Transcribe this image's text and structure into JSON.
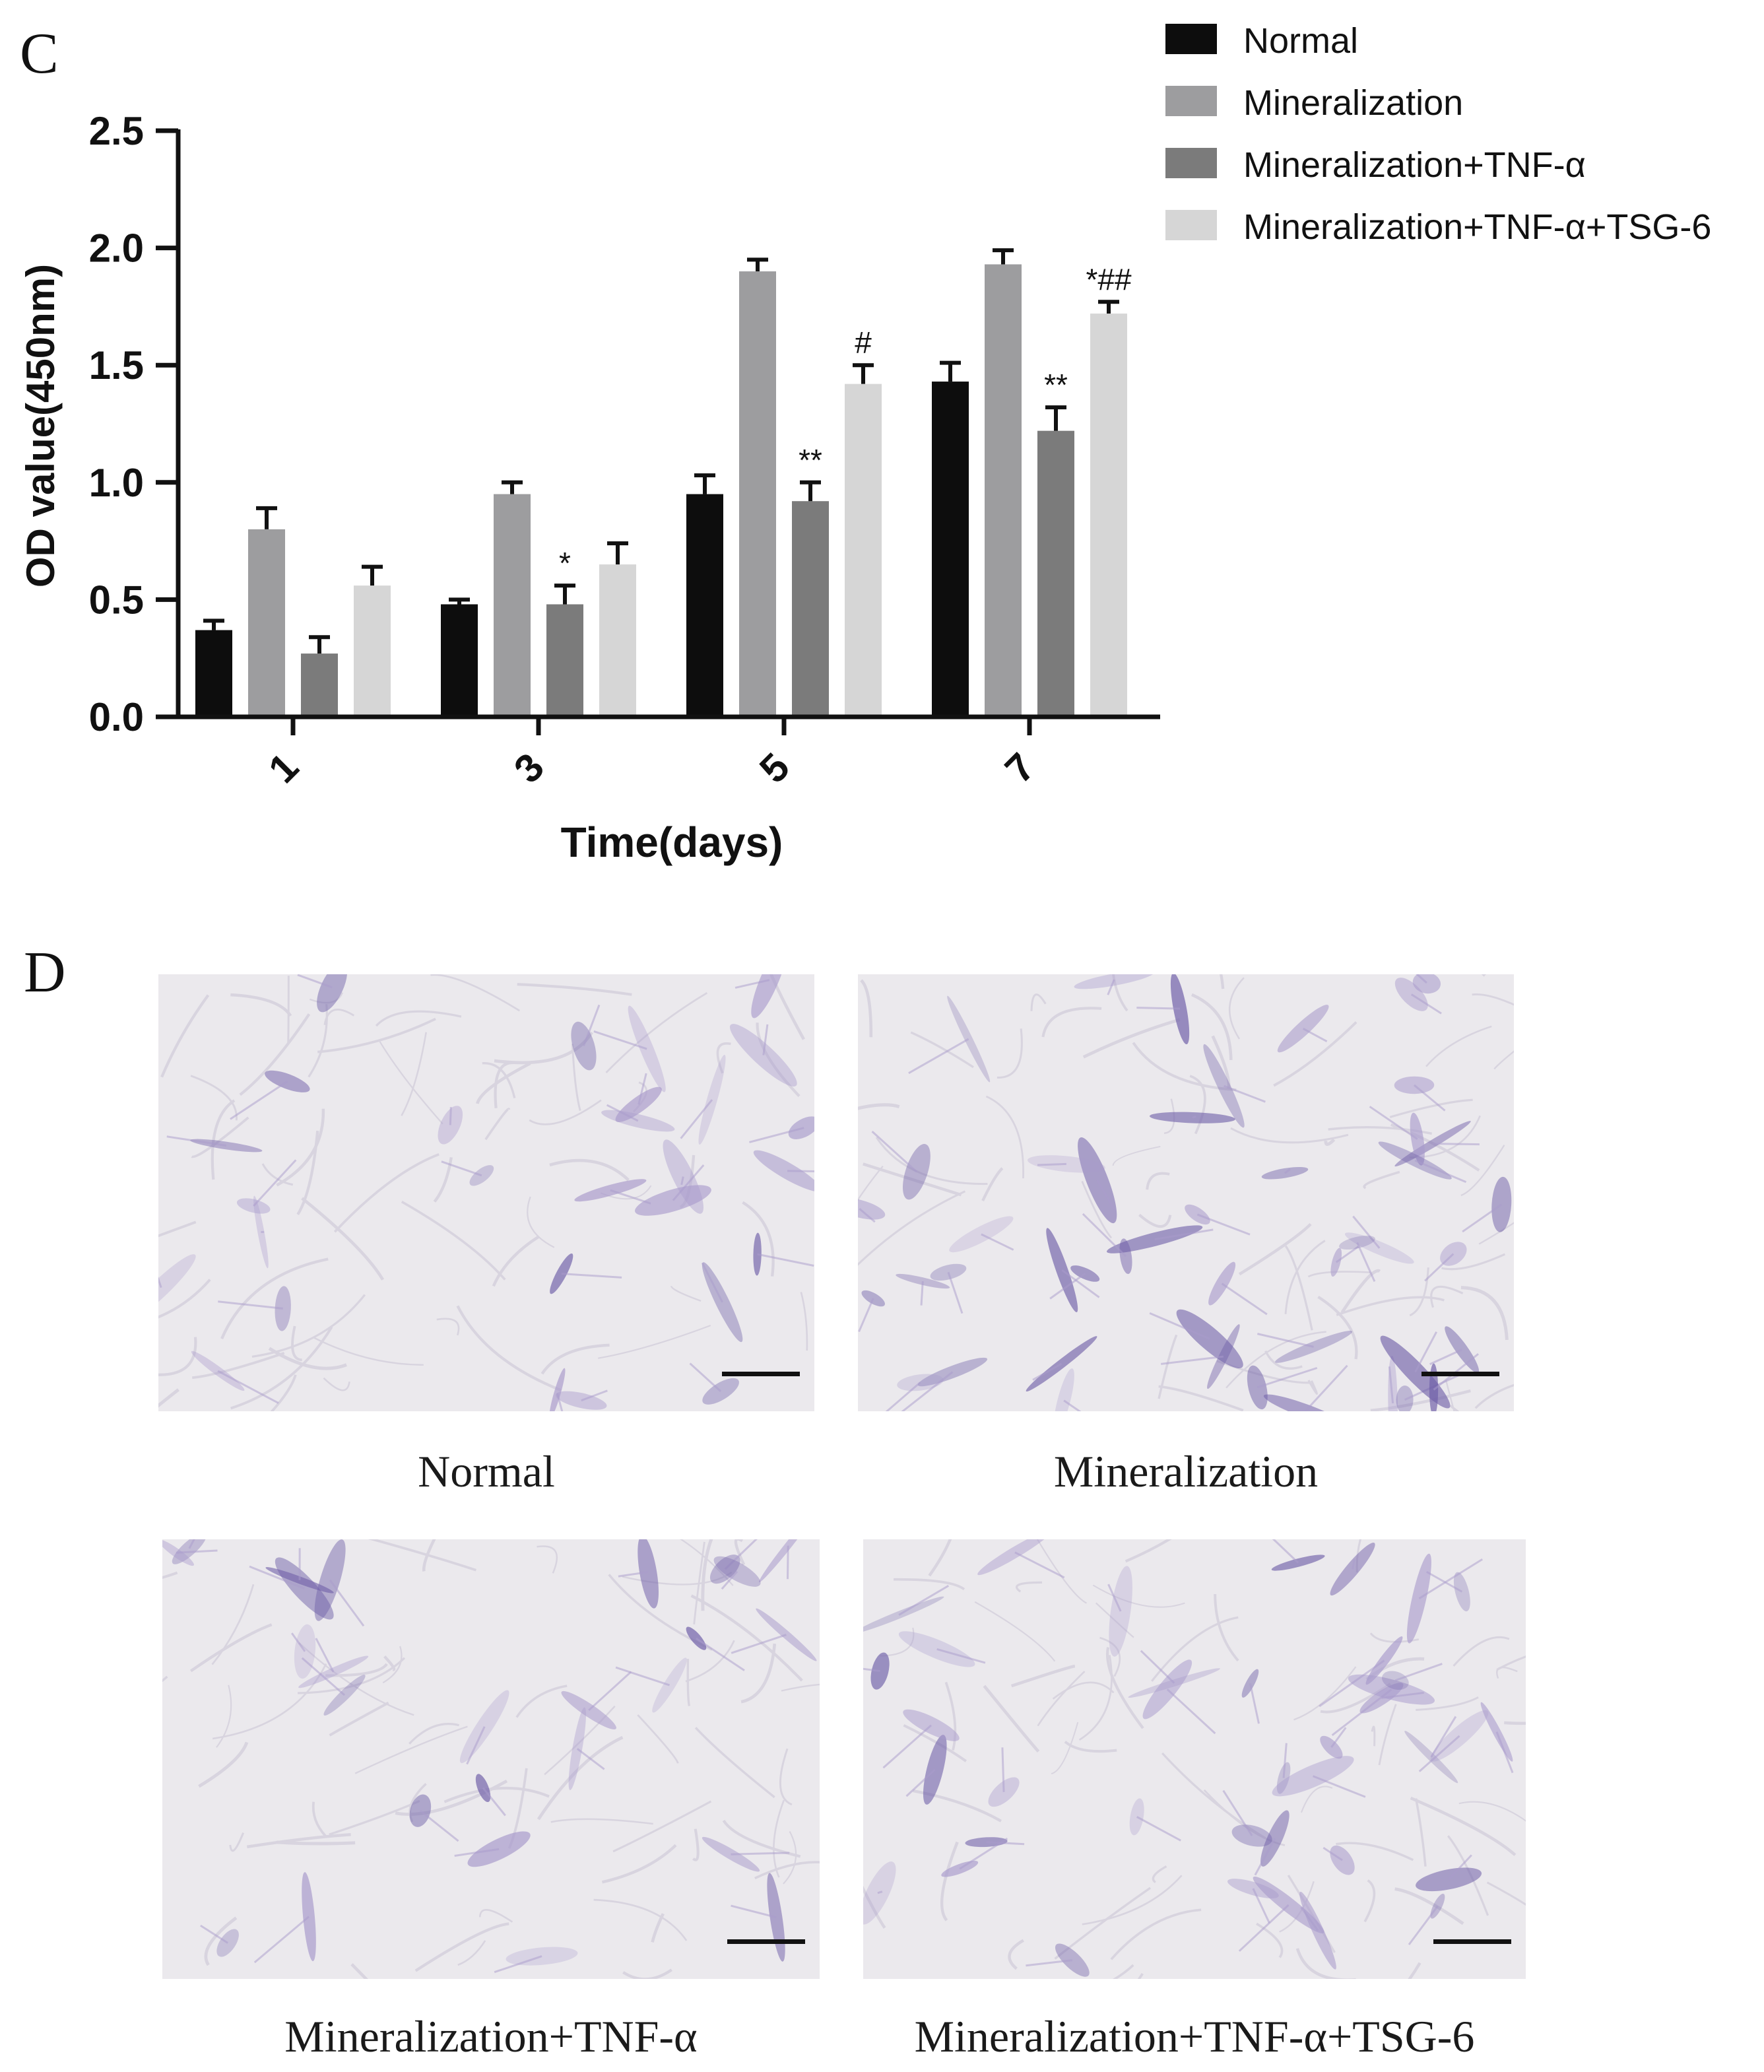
{
  "panel_c_label": "C",
  "panel_d_label": "D",
  "chart_data": {
    "type": "bar",
    "xlabel": "Time(days)",
    "ylabel": "OD value(450nm)",
    "ylim": [
      0,
      2.5
    ],
    "yticks": [
      "0.0",
      "0.5",
      "1.0",
      "1.5",
      "2.0",
      "2.5"
    ],
    "categories": [
      "1",
      "3",
      "5",
      "7"
    ],
    "legend_position": "top-right",
    "grid": false,
    "series": [
      {
        "name": "Normal",
        "color": "#0d0d0d",
        "values": [
          0.37,
          0.48,
          0.95,
          1.43
        ],
        "errors": [
          0.04,
          0.02,
          0.08,
          0.08
        ],
        "annotations": [
          "",
          "",
          "",
          ""
        ]
      },
      {
        "name": "Mineralization",
        "color": "#9d9d9f",
        "values": [
          0.8,
          0.95,
          1.9,
          1.93
        ],
        "errors": [
          0.09,
          0.05,
          0.05,
          0.06
        ],
        "annotations": [
          "",
          "",
          "",
          ""
        ]
      },
      {
        "name": "Mineralization+TNF-α",
        "color": "#7b7b7b",
        "values": [
          0.27,
          0.48,
          0.92,
          1.22
        ],
        "errors": [
          0.07,
          0.08,
          0.08,
          0.1
        ],
        "annotations": [
          "",
          "*",
          "**",
          "**"
        ]
      },
      {
        "name": "Mineralization+TNF-α+TSG-6",
        "color": "#d6d6d6",
        "values": [
          0.56,
          0.65,
          1.42,
          1.72
        ],
        "errors": [
          0.08,
          0.09,
          0.08,
          0.05
        ],
        "annotations": [
          "",
          "",
          "#",
          "*##"
        ]
      }
    ]
  },
  "micrographs": [
    {
      "caption": "Normal",
      "stain_density": 0.35
    },
    {
      "caption": "Mineralization",
      "stain_density": 0.8
    },
    {
      "caption": "Mineralization+TNF-α",
      "stain_density": 0.3
    },
    {
      "caption": "Mineralization+TNF-α+TSG-6",
      "stain_density": 0.6
    }
  ],
  "colors": {
    "stain": "#6f5fa8",
    "stain_light": "#a99bcc",
    "background": "#ebe9ed"
  }
}
